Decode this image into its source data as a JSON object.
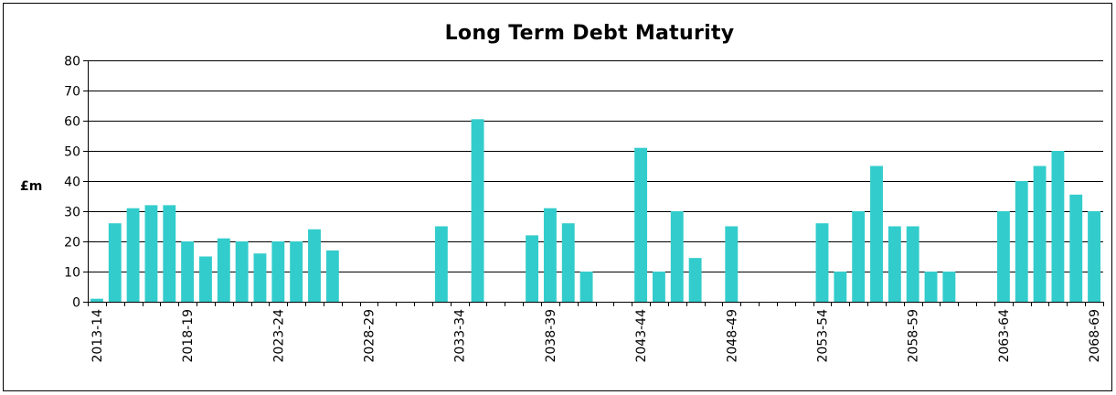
{
  "chart_data": {
    "type": "bar",
    "title": "Long Term Debt Maturity",
    "xlabel": "",
    "ylabel": "£m",
    "ylim": [
      0,
      80
    ],
    "yticks": [
      0,
      10,
      20,
      30,
      40,
      50,
      60,
      70,
      80
    ],
    "grid": true,
    "legend": "none",
    "bar_color": "#33CCCC",
    "categories": [
      "2013-14",
      "2014-15",
      "2015-16",
      "2016-17",
      "2017-18",
      "2018-19",
      "2019-20",
      "2020-21",
      "2021-22",
      "2022-23",
      "2023-24",
      "2024-25",
      "2025-26",
      "2026-27",
      "2027-28",
      "2028-29",
      "2029-30",
      "2030-31",
      "2031-32",
      "2032-33",
      "2033-34",
      "2034-35",
      "2035-36",
      "2036-37",
      "2037-38",
      "2038-39",
      "2039-40",
      "2040-41",
      "2041-42",
      "2042-43",
      "2043-44",
      "2044-45",
      "2045-46",
      "2046-47",
      "2047-48",
      "2048-49",
      "2049-50",
      "2050-51",
      "2051-52",
      "2052-53",
      "2053-54",
      "2054-55",
      "2055-56",
      "2056-57",
      "2057-58",
      "2058-59",
      "2059-60",
      "2060-61",
      "2061-62",
      "2062-63",
      "2063-64",
      "2064-65",
      "2065-66",
      "2066-67",
      "2067-68",
      "2068-69"
    ],
    "visible_tick_labels": [
      "2013-14",
      "2018-19",
      "2023-24",
      "2028-29",
      "2033-34",
      "2038-39",
      "2043-44",
      "2048-49",
      "2053-54",
      "2058-59",
      "2063-64",
      "2068-69"
    ],
    "values": [
      1,
      26,
      31,
      32,
      32,
      20,
      15,
      21,
      20,
      16,
      20,
      20,
      24,
      17,
      0,
      0,
      0,
      0,
      0,
      25,
      0,
      60.5,
      0,
      0,
      22,
      31,
      26,
      10,
      0,
      0,
      51,
      10,
      30,
      14.5,
      0,
      25,
      0,
      0,
      0,
      0,
      26,
      10,
      30,
      45,
      25,
      25,
      10,
      10,
      0,
      0,
      30,
      40,
      45,
      50,
      35.5,
      30
    ]
  }
}
